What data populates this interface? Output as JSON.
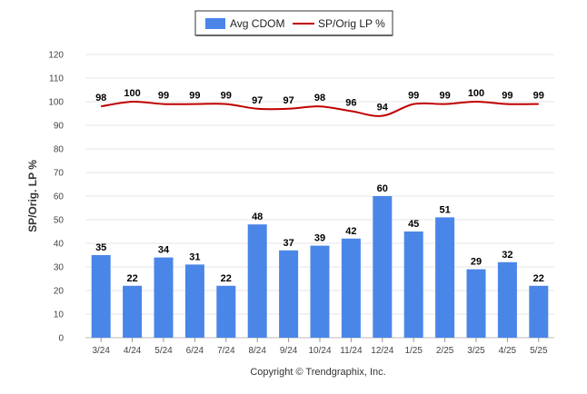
{
  "chart_data": {
    "type": "bar",
    "categories": [
      "3/24",
      "4/24",
      "5/24",
      "6/24",
      "7/24",
      "8/24",
      "9/24",
      "10/24",
      "11/24",
      "12/24",
      "1/25",
      "2/25",
      "3/25",
      "4/25",
      "5/25"
    ],
    "series": [
      {
        "name": "Avg CDOM",
        "type": "bar",
        "color": "#4a86e8",
        "values": [
          35,
          22,
          34,
          31,
          22,
          48,
          37,
          39,
          42,
          60,
          45,
          51,
          29,
          32,
          22
        ]
      },
      {
        "name": "SP/Orig LP %",
        "type": "line",
        "color": "#c00000",
        "values": [
          98,
          100,
          99,
          99,
          99,
          97,
          97,
          98,
          96,
          94,
          99,
          99,
          100,
          99,
          99
        ]
      }
    ],
    "ylabel": "SP/Orig. LP %",
    "ylim": [
      0,
      120
    ],
    "yticks": [
      0,
      10,
      20,
      30,
      40,
      50,
      60,
      70,
      80,
      90,
      100,
      110,
      120
    ],
    "grid": true,
    "legend_position": "top-center"
  },
  "footer": {
    "copyright": "Copyright © Trendgraphix, Inc."
  }
}
